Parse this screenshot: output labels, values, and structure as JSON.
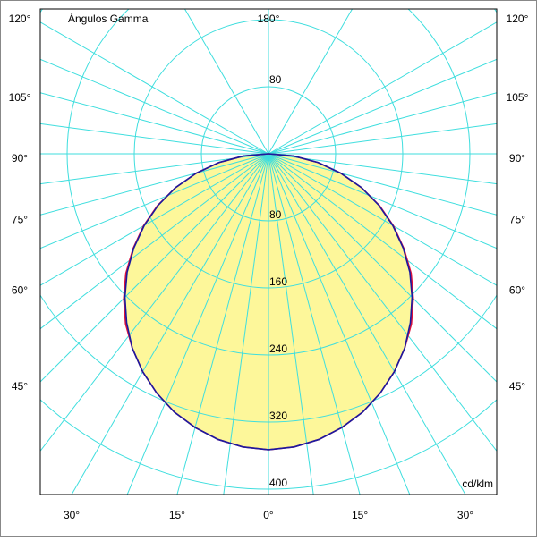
{
  "chart_data": {
    "type": "polar",
    "title": "Ángulos Gamma",
    "unit": "cd/klm",
    "x": [
      0,
      5,
      10,
      15,
      20,
      25,
      30,
      35,
      40,
      45,
      50,
      55,
      60,
      65,
      70,
      75,
      80,
      85,
      90
    ],
    "series": [
      {
        "color": "#e0103a",
        "values": [
          353,
          351,
          346,
          338,
          328,
          315,
          300,
          283,
          265,
          244,
          222,
          197,
          172,
          146,
          118,
          89,
          60,
          30,
          0
        ]
      },
      {
        "color": "#1a1aa0",
        "values": [
          353,
          351,
          346,
          338,
          328,
          315,
          300,
          283,
          263,
          242,
          220,
          196,
          171,
          145,
          118,
          89,
          60,
          30,
          0
        ]
      }
    ],
    "fill": "#fdf79a",
    "grid_color": "#3fdede",
    "rlim": [
      0,
      400
    ],
    "rticks": [
      80,
      160,
      240,
      320,
      400
    ],
    "angle_ticks": [
      {
        "value": 0,
        "label": "0°"
      },
      {
        "value": 15,
        "label": "15°"
      },
      {
        "value": 30,
        "label": "30°"
      },
      {
        "value": 45,
        "label": "45°"
      },
      {
        "value": 60,
        "label": "60°"
      },
      {
        "value": 75,
        "label": "75°"
      },
      {
        "value": 90,
        "label": "90°"
      },
      {
        "value": 105,
        "label": "105°"
      },
      {
        "value": 120,
        "label": "120°"
      },
      {
        "value": 180,
        "label": "180°"
      }
    ]
  }
}
